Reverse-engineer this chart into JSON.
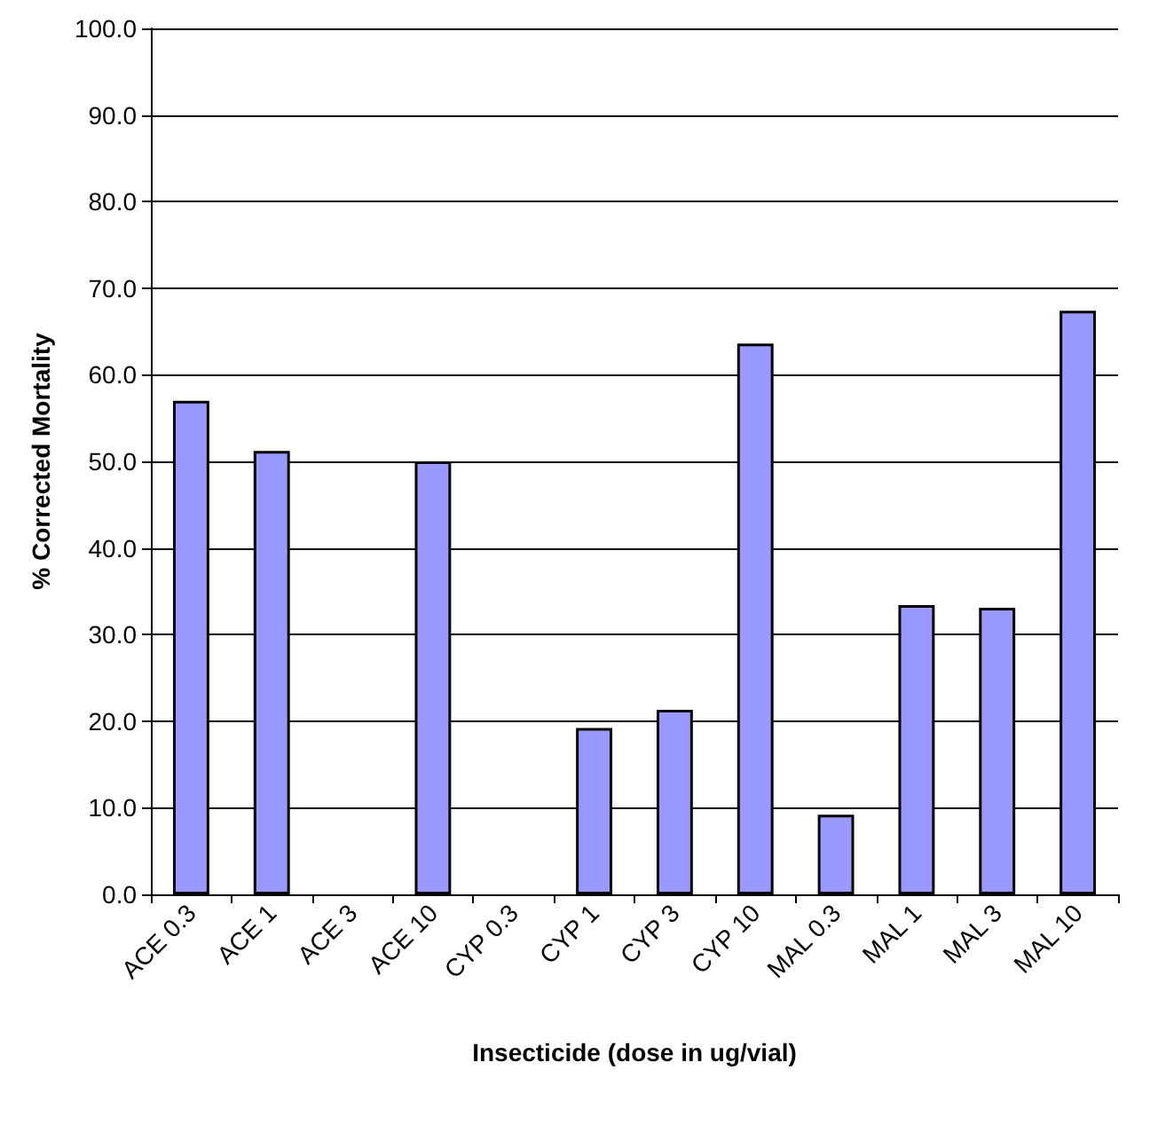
{
  "chart_data": {
    "type": "bar",
    "xlabel": "Insecticide (dose in ug/vial)",
    "ylabel": "% Corrected Mortality",
    "categories": [
      "ACE 0.3",
      "ACE 1",
      "ACE 3",
      "ACE 10",
      "CYP 0.3",
      "CYP 1",
      "CYP 3",
      "CYP 10",
      "MAL 0.3",
      "MAL 1",
      "MAL 3",
      "MAL 10"
    ],
    "values": [
      57,
      51.2,
      0,
      50,
      0,
      19.2,
      21.3,
      63.6,
      9.2,
      33.4,
      33.1,
      67.4
    ],
    "color": "#9999ff",
    "ylim": [
      0,
      100
    ],
    "yticks": [
      {
        "value": 0,
        "label": "0.0"
      },
      {
        "value": 10,
        "label": "10.0"
      },
      {
        "value": 20,
        "label": "20.0"
      },
      {
        "value": 30,
        "label": "30.0"
      },
      {
        "value": 40,
        "label": "40.0"
      },
      {
        "value": 50,
        "label": "50.0"
      },
      {
        "value": 60,
        "label": "60.0"
      },
      {
        "value": 70,
        "label": "70.0"
      },
      {
        "value": 80,
        "label": "80.0"
      },
      {
        "value": 90,
        "label": "90.0"
      },
      {
        "value": 100,
        "label": "100.0"
      }
    ],
    "grid": "y"
  }
}
